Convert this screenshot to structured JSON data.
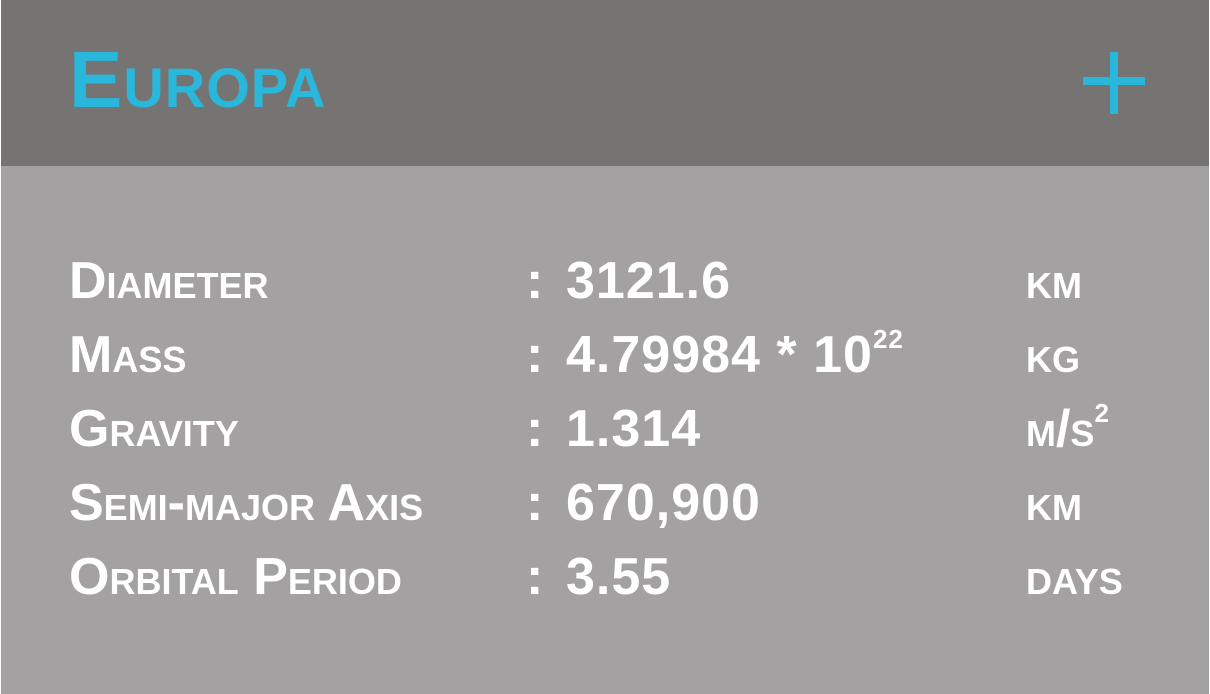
{
  "header": {
    "title": "Europa",
    "add_icon": "plus-icon",
    "accent_color": "#2ab7dc"
  },
  "rows": [
    {
      "label": "Diameter",
      "value": "3121.6",
      "unit": "km"
    },
    {
      "label": "Mass",
      "value": "4.79984 * 10",
      "value_exponent": "22",
      "unit": "kg"
    },
    {
      "label": "Gravity",
      "value": "1.314",
      "unit": "m/s",
      "unit_exponent": "2"
    },
    {
      "label": "Semi-major Axis",
      "value": "670,900",
      "unit": "km"
    },
    {
      "label": "Orbital Period",
      "value": "3.55",
      "unit": "days"
    }
  ],
  "separator": ":"
}
